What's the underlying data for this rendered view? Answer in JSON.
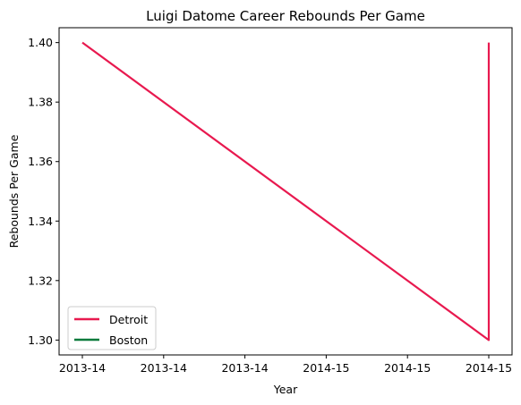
{
  "chart_data": {
    "type": "line",
    "title": "Luigi Datome Career Rebounds Per Game",
    "xlabel": "Year",
    "ylabel": "Rebounds Per Game",
    "x_tick_labels": [
      "2013-14",
      "2013-14",
      "2013-14",
      "2014-15",
      "2014-15",
      "2014-15"
    ],
    "y_ticks": [
      1.3,
      1.32,
      1.34,
      1.36,
      1.38,
      1.4
    ],
    "ylim": [
      1.295,
      1.405
    ],
    "grid": false,
    "legend_position": "lower-left",
    "series": [
      {
        "name": "Detroit",
        "color": "#e8194f",
        "points": [
          {
            "season": "2013-14",
            "value": 1.4
          },
          {
            "season": "2014-15",
            "value": 1.3
          },
          {
            "season": "2014-15",
            "value": 1.4
          }
        ]
      },
      {
        "name": "Boston",
        "color": "#0a7a3c",
        "points": []
      }
    ]
  }
}
